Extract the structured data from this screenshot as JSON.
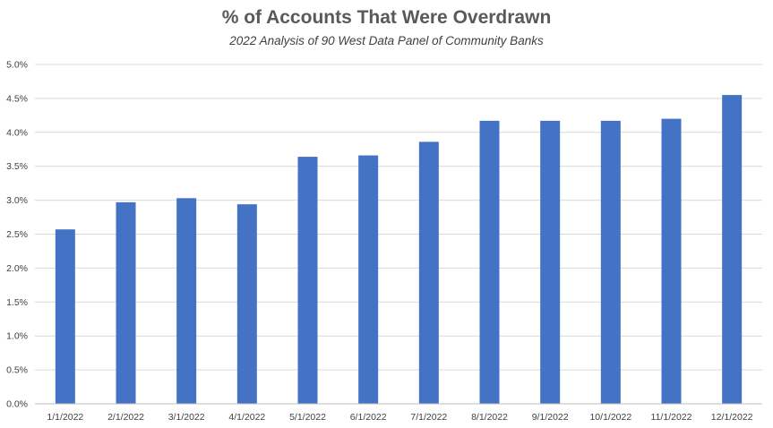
{
  "chart_data": {
    "type": "bar",
    "title": "% of Accounts That Were Overdrawn",
    "subtitle": "2022 Analysis of 90 West Data Panel of Community Banks",
    "xlabel": "",
    "ylabel": "",
    "categories": [
      "1/1/2022",
      "2/1/2022",
      "3/1/2022",
      "4/1/2022",
      "5/1/2022",
      "6/1/2022",
      "7/1/2022",
      "8/1/2022",
      "9/1/2022",
      "10/1/2022",
      "11/1/2022",
      "12/1/2022"
    ],
    "values": [
      2.57,
      2.97,
      3.03,
      2.94,
      3.64,
      3.66,
      3.86,
      4.17,
      4.17,
      4.17,
      4.2,
      4.55
    ],
    "ylim": [
      0,
      5
    ],
    "yticks": [
      "0.0%",
      "0.5%",
      "1.0%",
      "1.5%",
      "2.0%",
      "2.5%",
      "3.0%",
      "3.5%",
      "4.0%",
      "4.5%",
      "5.0%"
    ],
    "grid": true,
    "legend": "none",
    "colors": {
      "bar": "#4472C4",
      "grid": "#D9D9D9",
      "axis": "#BFBFBF"
    }
  }
}
